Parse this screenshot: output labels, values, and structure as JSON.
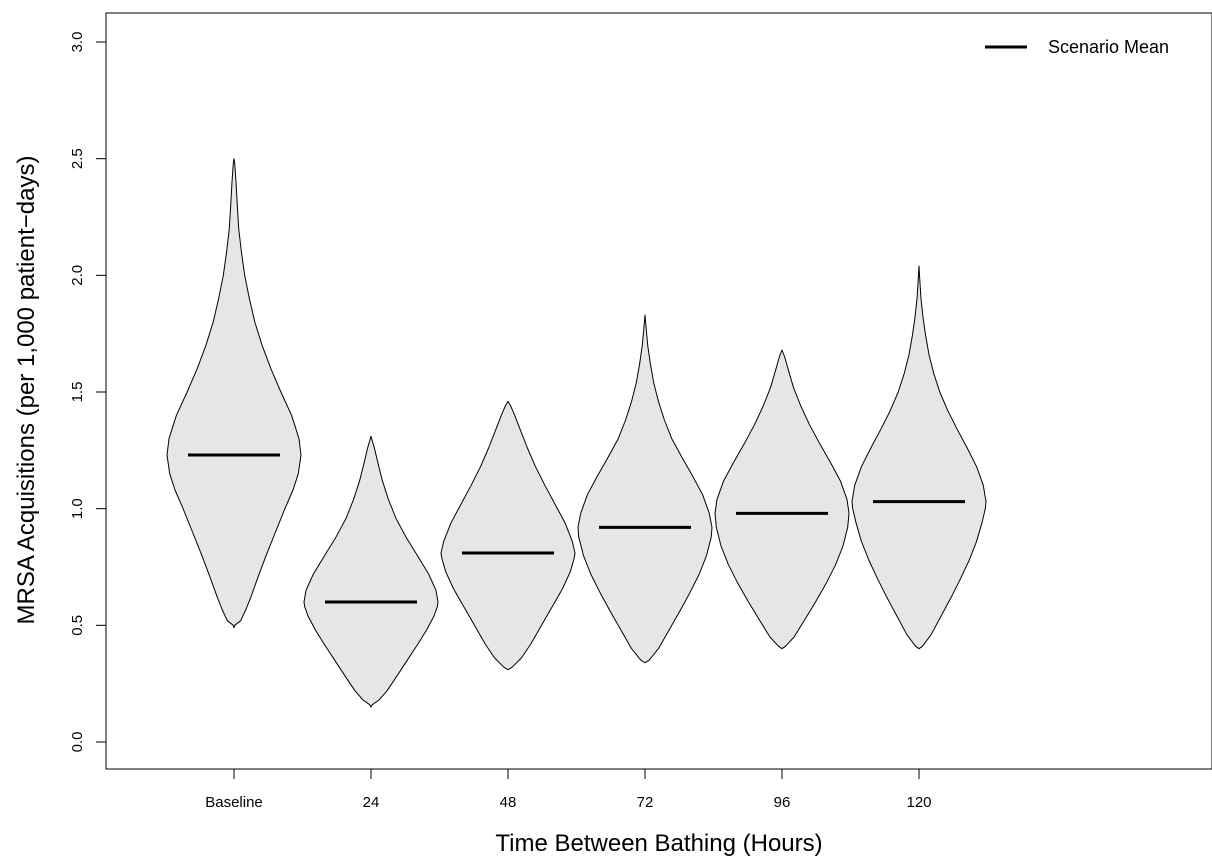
{
  "chart_data": {
    "type": "violin",
    "title": "",
    "xlabel": "Time Between Bathing (Hours)",
    "ylabel": "MRSA Acquisitions (per 1,000 patient−days)",
    "ylim": [
      0,
      3
    ],
    "yticks": [
      "0.0",
      "0.5",
      "1.0",
      "1.5",
      "2.0",
      "2.5",
      "3.0"
    ],
    "categories": [
      "Baseline",
      "24",
      "48",
      "72",
      "96",
      "120"
    ],
    "legend": {
      "label": "Scenario Mean",
      "position": "top-right"
    },
    "fill_color": "#e6e6e6",
    "series": [
      {
        "category": "Baseline",
        "mean": 1.23,
        "min": 0.49,
        "max": 2.5,
        "density": [
          [
            0.49,
            0.0
          ],
          [
            0.5,
            0.01
          ],
          [
            0.52,
            0.1
          ],
          [
            0.57,
            0.18
          ],
          [
            0.62,
            0.25
          ],
          [
            0.7,
            0.35
          ],
          [
            0.8,
            0.48
          ],
          [
            0.9,
            0.62
          ],
          [
            1.0,
            0.76
          ],
          [
            1.08,
            0.88
          ],
          [
            1.15,
            0.96
          ],
          [
            1.23,
            1.0
          ],
          [
            1.3,
            0.97
          ],
          [
            1.4,
            0.86
          ],
          [
            1.5,
            0.7
          ],
          [
            1.6,
            0.55
          ],
          [
            1.7,
            0.42
          ],
          [
            1.8,
            0.31
          ],
          [
            1.9,
            0.23
          ],
          [
            2.0,
            0.16
          ],
          [
            2.1,
            0.11
          ],
          [
            2.2,
            0.07
          ],
          [
            2.3,
            0.05
          ],
          [
            2.4,
            0.03
          ],
          [
            2.48,
            0.01
          ],
          [
            2.5,
            0.0
          ]
        ]
      },
      {
        "category": "24",
        "mean": 0.6,
        "min": 0.15,
        "max": 1.31,
        "density": [
          [
            0.15,
            0.0
          ],
          [
            0.16,
            0.02
          ],
          [
            0.18,
            0.12
          ],
          [
            0.22,
            0.24
          ],
          [
            0.28,
            0.38
          ],
          [
            0.35,
            0.54
          ],
          [
            0.42,
            0.7
          ],
          [
            0.48,
            0.83
          ],
          [
            0.54,
            0.94
          ],
          [
            0.58,
            0.99
          ],
          [
            0.6,
            1.0
          ],
          [
            0.65,
            0.97
          ],
          [
            0.72,
            0.86
          ],
          [
            0.8,
            0.69
          ],
          [
            0.88,
            0.52
          ],
          [
            0.96,
            0.37
          ],
          [
            1.04,
            0.26
          ],
          [
            1.12,
            0.17
          ],
          [
            1.2,
            0.1
          ],
          [
            1.26,
            0.05
          ],
          [
            1.29,
            0.02
          ],
          [
            1.31,
            0.0
          ]
        ]
      },
      {
        "category": "48",
        "mean": 0.81,
        "min": 0.31,
        "max": 1.46,
        "density": [
          [
            0.31,
            0.0
          ],
          [
            0.32,
            0.06
          ],
          [
            0.36,
            0.2
          ],
          [
            0.42,
            0.34
          ],
          [
            0.5,
            0.5
          ],
          [
            0.58,
            0.66
          ],
          [
            0.66,
            0.82
          ],
          [
            0.73,
            0.93
          ],
          [
            0.79,
            0.99
          ],
          [
            0.81,
            1.0
          ],
          [
            0.86,
            0.96
          ],
          [
            0.94,
            0.85
          ],
          [
            1.02,
            0.7
          ],
          [
            1.1,
            0.55
          ],
          [
            1.18,
            0.41
          ],
          [
            1.26,
            0.29
          ],
          [
            1.34,
            0.18
          ],
          [
            1.4,
            0.1
          ],
          [
            1.44,
            0.04
          ],
          [
            1.46,
            0.0
          ]
        ]
      },
      {
        "category": "72",
        "mean": 0.92,
        "min": 0.34,
        "max": 1.83,
        "density": [
          [
            0.34,
            0.0
          ],
          [
            0.35,
            0.06
          ],
          [
            0.4,
            0.2
          ],
          [
            0.48,
            0.36
          ],
          [
            0.56,
            0.52
          ],
          [
            0.64,
            0.67
          ],
          [
            0.72,
            0.81
          ],
          [
            0.8,
            0.92
          ],
          [
            0.88,
            0.99
          ],
          [
            0.92,
            1.0
          ],
          [
            0.98,
            0.96
          ],
          [
            1.06,
            0.86
          ],
          [
            1.14,
            0.71
          ],
          [
            1.22,
            0.55
          ],
          [
            1.3,
            0.4
          ],
          [
            1.38,
            0.29
          ],
          [
            1.46,
            0.2
          ],
          [
            1.54,
            0.13
          ],
          [
            1.62,
            0.08
          ],
          [
            1.7,
            0.04
          ],
          [
            1.78,
            0.015
          ],
          [
            1.83,
            0.0
          ]
        ]
      },
      {
        "category": "96",
        "mean": 0.98,
        "min": 0.4,
        "max": 1.68,
        "density": [
          [
            0.4,
            0.0
          ],
          [
            0.41,
            0.05
          ],
          [
            0.45,
            0.18
          ],
          [
            0.52,
            0.33
          ],
          [
            0.6,
            0.5
          ],
          [
            0.68,
            0.66
          ],
          [
            0.76,
            0.8
          ],
          [
            0.84,
            0.91
          ],
          [
            0.92,
            0.98
          ],
          [
            0.98,
            1.0
          ],
          [
            1.04,
            0.97
          ],
          [
            1.12,
            0.87
          ],
          [
            1.2,
            0.72
          ],
          [
            1.28,
            0.56
          ],
          [
            1.36,
            0.41
          ],
          [
            1.44,
            0.28
          ],
          [
            1.52,
            0.17
          ],
          [
            1.6,
            0.09
          ],
          [
            1.65,
            0.04
          ],
          [
            1.68,
            0.0
          ]
        ]
      },
      {
        "category": "120",
        "mean": 1.03,
        "min": 0.4,
        "max": 2.04,
        "density": [
          [
            0.4,
            0.0
          ],
          [
            0.41,
            0.05
          ],
          [
            0.46,
            0.18
          ],
          [
            0.54,
            0.33
          ],
          [
            0.62,
            0.48
          ],
          [
            0.7,
            0.62
          ],
          [
            0.78,
            0.75
          ],
          [
            0.86,
            0.86
          ],
          [
            0.94,
            0.94
          ],
          [
            1.0,
            0.99
          ],
          [
            1.03,
            1.0
          ],
          [
            1.1,
            0.96
          ],
          [
            1.18,
            0.86
          ],
          [
            1.26,
            0.72
          ],
          [
            1.34,
            0.57
          ],
          [
            1.42,
            0.43
          ],
          [
            1.5,
            0.31
          ],
          [
            1.58,
            0.22
          ],
          [
            1.66,
            0.15
          ],
          [
            1.74,
            0.1
          ],
          [
            1.82,
            0.06
          ],
          [
            1.9,
            0.03
          ],
          [
            1.98,
            0.012
          ],
          [
            2.04,
            0.0
          ]
        ]
      }
    ]
  }
}
